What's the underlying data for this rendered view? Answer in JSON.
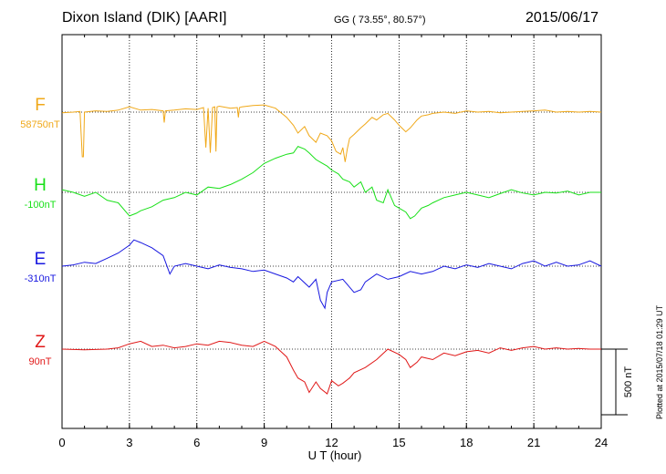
{
  "header": {
    "station": "Dixon Island (DIK)  [AARI]",
    "coords": "GG ( 73.55°,  80.57°)",
    "date": "2015/06/17"
  },
  "plotted_note": "Plotted at 2015/07/18 01:29 UT",
  "chart_data": {
    "type": "line",
    "xlabel": "U T (hour)",
    "xlim": [
      0,
      24
    ],
    "xticks": [
      0,
      3,
      6,
      9,
      12,
      15,
      18,
      21,
      24
    ],
    "scale_bar": "500 nT",
    "grid": true,
    "series": [
      {
        "name": "F",
        "offset_label": "58750nT",
        "color": "#f0a818",
        "x": [
          0,
          0.5,
          0.8,
          0.9,
          0.95,
          1.0,
          1.5,
          2,
          2.5,
          3,
          3.5,
          4,
          4.5,
          4.55,
          4.6,
          5,
          5.5,
          6,
          6.3,
          6.4,
          6.5,
          6.6,
          6.7,
          6.8,
          6.85,
          6.9,
          7,
          7.5,
          7.8,
          7.85,
          7.9,
          8,
          8.5,
          9,
          9.5,
          10,
          10.3,
          10.5,
          10.8,
          11,
          11.3,
          11.5,
          11.8,
          12,
          12.2,
          12.4,
          12.5,
          12.6,
          12.7,
          12.8,
          13,
          13.3,
          13.5,
          13.8,
          14,
          14.3,
          14.5,
          14.8,
          15,
          15.3,
          15.5,
          15.8,
          16,
          16.3,
          16.5,
          17,
          17.5,
          18,
          18.5,
          19,
          19.5,
          20,
          20.5,
          21,
          21.5,
          22,
          22.5,
          23,
          23.5,
          24
        ],
        "y": [
          -5,
          0,
          5,
          -340,
          -340,
          0,
          10,
          5,
          15,
          40,
          15,
          20,
          10,
          -80,
          10,
          15,
          25,
          20,
          35,
          -270,
          30,
          -310,
          35,
          40,
          -300,
          40,
          45,
          30,
          35,
          -40,
          35,
          40,
          50,
          55,
          30,
          -40,
          -100,
          -160,
          -110,
          -180,
          -230,
          -160,
          -180,
          -220,
          -300,
          -320,
          -270,
          -380,
          -280,
          -200,
          -170,
          -120,
          -90,
          -40,
          -60,
          -20,
          -10,
          -60,
          -100,
          -150,
          -120,
          -60,
          -30,
          -20,
          -10,
          0,
          -10,
          10,
          0,
          5,
          -5,
          0,
          5,
          10,
          15,
          0,
          5,
          0,
          5,
          0
        ],
        "ylim": [
          -700,
          300
        ]
      },
      {
        "name": "H",
        "offset_label": "-100nT",
        "color": "#18e018",
        "x": [
          0,
          0.5,
          1,
          1.5,
          2,
          2.5,
          3,
          3.3,
          3.5,
          4,
          4.5,
          5,
          5.5,
          6,
          6.5,
          7,
          7.5,
          8,
          8.5,
          9,
          9.5,
          10,
          10.3,
          10.5,
          10.8,
          11,
          11.3,
          11.5,
          11.8,
          12,
          12.3,
          12.5,
          12.8,
          13,
          13.3,
          13.5,
          13.8,
          14,
          14.3,
          14.5,
          14.8,
          15,
          15.3,
          15.5,
          15.7,
          16,
          16.3,
          16.5,
          17,
          17.5,
          18,
          18.5,
          19,
          19.5,
          20,
          20.5,
          21,
          21.5,
          22,
          22.5,
          23,
          23.5,
          24
        ],
        "y": [
          20,
          0,
          -30,
          0,
          -60,
          -80,
          -180,
          -160,
          -140,
          -110,
          -60,
          -40,
          0,
          -20,
          40,
          30,
          60,
          100,
          150,
          220,
          260,
          290,
          300,
          350,
          330,
          300,
          250,
          230,
          200,
          170,
          140,
          100,
          80,
          40,
          80,
          0,
          40,
          -60,
          -80,
          20,
          -100,
          -120,
          -150,
          -200,
          -180,
          -120,
          -100,
          -80,
          -40,
          -20,
          0,
          -20,
          -40,
          -10,
          20,
          -5,
          -20,
          0,
          -5,
          10,
          -20,
          0,
          0
        ],
        "ylim": [
          -700,
          700
        ]
      },
      {
        "name": "E",
        "offset_label": "-310nT",
        "color": "#1818e0",
        "x": [
          0,
          0.5,
          1,
          1.5,
          2,
          2.5,
          3,
          3.2,
          3.5,
          4,
          4.5,
          4.8,
          5,
          5.5,
          6,
          6.5,
          7,
          7.5,
          8,
          8.5,
          9,
          9.5,
          10,
          10.3,
          10.5,
          11,
          11.3,
          11.5,
          11.7,
          11.8,
          12,
          12.5,
          13,
          13.3,
          13.5,
          14,
          14.5,
          15,
          15.5,
          16,
          16.5,
          17,
          17.5,
          18,
          18.5,
          19,
          19.5,
          20,
          20.5,
          21,
          21.5,
          22,
          22.5,
          23,
          23.5,
          24
        ],
        "y": [
          0,
          10,
          30,
          20,
          60,
          100,
          160,
          200,
          180,
          140,
          80,
          -60,
          0,
          20,
          0,
          -20,
          10,
          -10,
          -20,
          -40,
          -30,
          -60,
          -90,
          -120,
          -80,
          -160,
          -100,
          -260,
          -320,
          -200,
          -120,
          -100,
          -200,
          -180,
          -120,
          -60,
          -100,
          -80,
          -40,
          -60,
          -40,
          0,
          -20,
          10,
          -10,
          20,
          0,
          -20,
          20,
          40,
          0,
          30,
          0,
          10,
          40,
          0
        ],
        "ylim": [
          -700,
          700
        ]
      },
      {
        "name": "Z",
        "offset_label": "90nT",
        "color": "#e01818",
        "x": [
          0,
          1,
          2,
          2.5,
          3,
          3.5,
          4,
          4.5,
          5,
          5.5,
          6,
          6.5,
          7,
          7.5,
          8,
          8.5,
          9,
          9.5,
          10,
          10.3,
          10.5,
          10.8,
          11,
          11.3,
          11.5,
          11.8,
          12,
          12.3,
          12.5,
          12.8,
          13,
          13.5,
          14,
          14.5,
          15,
          15.3,
          15.5,
          15.8,
          16,
          16.5,
          17,
          17.5,
          18,
          18.5,
          19,
          19.5,
          20,
          20.5,
          21,
          21.5,
          22,
          22.5,
          23,
          23.5,
          24
        ],
        "y": [
          0,
          -5,
          0,
          10,
          40,
          60,
          20,
          30,
          10,
          20,
          40,
          30,
          60,
          50,
          30,
          20,
          60,
          20,
          -60,
          -160,
          -220,
          -250,
          -330,
          -250,
          -300,
          -340,
          -240,
          -280,
          -260,
          -220,
          -180,
          -140,
          -80,
          0,
          -40,
          -80,
          -140,
          -100,
          -60,
          -80,
          -30,
          -50,
          -20,
          -10,
          -30,
          10,
          -10,
          10,
          20,
          0,
          10,
          0,
          5,
          0,
          0
        ],
        "ylim": [
          -700,
          700
        ]
      }
    ]
  }
}
